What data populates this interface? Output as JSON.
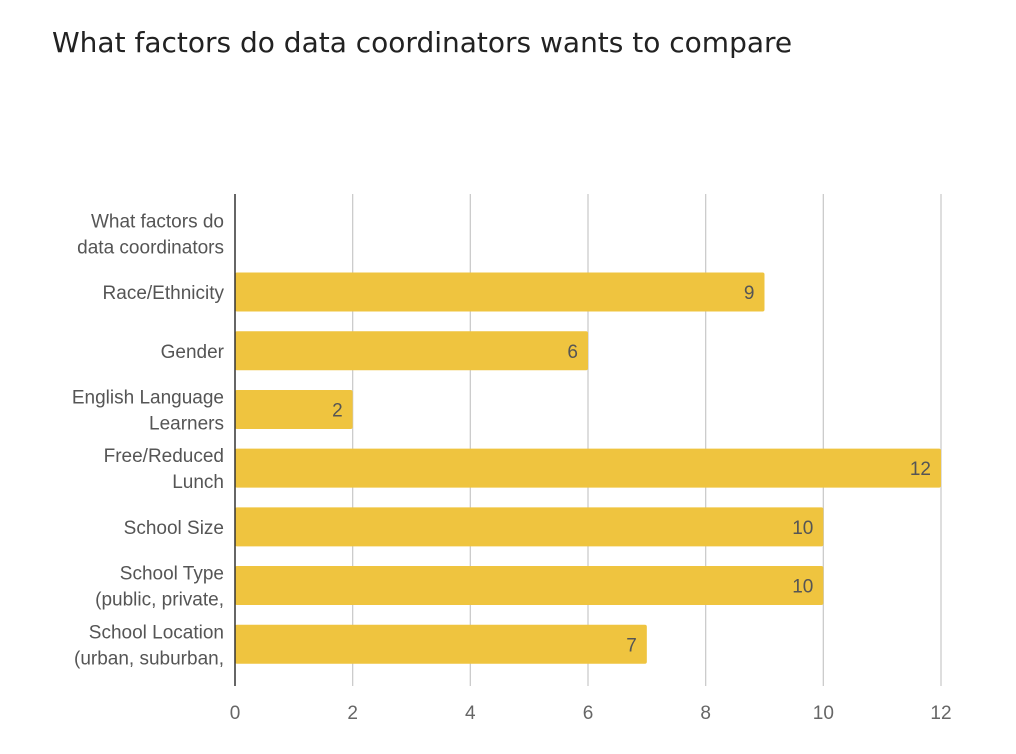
{
  "chart_data": {
    "type": "bar",
    "orientation": "horizontal",
    "title": "What factors do data coordinators wants to compare",
    "xlabel": "",
    "ylabel": "",
    "xlim": [
      0,
      12
    ],
    "xticks": [
      0,
      2,
      4,
      6,
      8,
      10,
      12
    ],
    "grid": true,
    "legend": "none",
    "bar_color": "#EFC43F",
    "categories": [
      [
        "What factors do",
        "data coordinators"
      ],
      [
        "Race/Ethnicity"
      ],
      [
        "Gender"
      ],
      [
        "English Language",
        "Learners"
      ],
      [
        "Free/Reduced",
        "Lunch"
      ],
      [
        "School Size"
      ],
      [
        "School Type",
        "(public, private,"
      ],
      [
        "School Location",
        "(urban, suburban,"
      ]
    ],
    "values": [
      null,
      9,
      6,
      2,
      12,
      10,
      10,
      7
    ]
  }
}
